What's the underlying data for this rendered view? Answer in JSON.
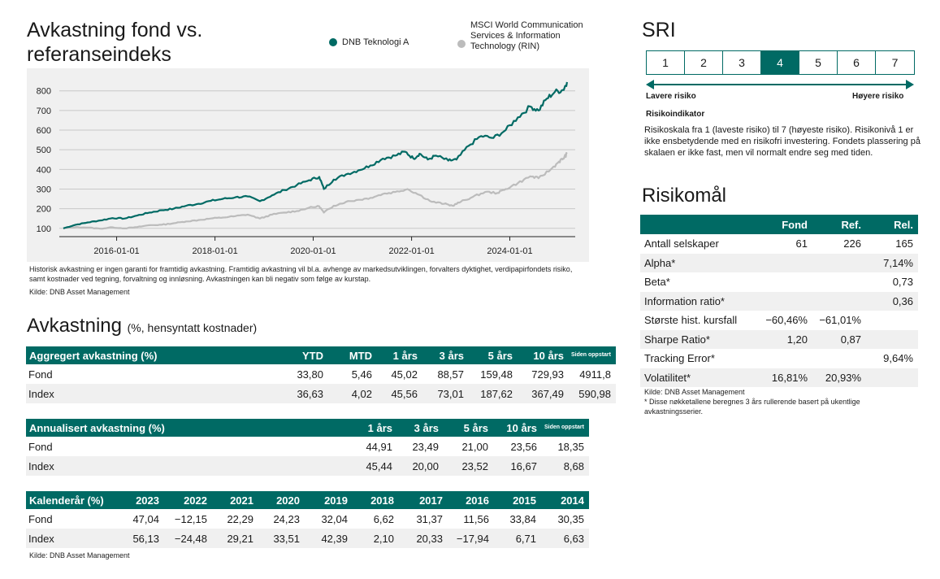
{
  "chart_section": {
    "title": "Avkastning fond vs. referanseindeks",
    "note": "Historisk avkastning er ingen garanti for framtidig avkastning. Framtidig avkastning vil bl.a. avhenge av markedsutviklingen, forvalters dyktighet, verdipapirfondets risiko, samt kostnader ved tegning, forvaltning og innløsning. Avkastningen kan bli negativ som følge av kurstap.",
    "source": "Kilde: DNB Asset Management"
  },
  "chart_data": {
    "type": "line",
    "title": "Avkastning fond vs. referanseindeks",
    "xlabel": "",
    "ylabel": "",
    "x_ticks": [
      "2016-01-01",
      "2018-01-01",
      "2020-01-01",
      "2022-01-01",
      "2024-01-01"
    ],
    "y_ticks": [
      100,
      200,
      300,
      400,
      500,
      600,
      700,
      800
    ],
    "xlim": [
      "2014-11-01",
      "2025-05-01"
    ],
    "ylim": [
      70,
      890
    ],
    "grid": true,
    "legend_position": "top",
    "series": [
      {
        "name": "DNB Teknologi A",
        "color": "#006a64",
        "points": [
          [
            "2014-12-01",
            100
          ],
          [
            "2015-03-01",
            118
          ],
          [
            "2015-06-01",
            130
          ],
          [
            "2015-09-01",
            140
          ],
          [
            "2015-12-01",
            152
          ],
          [
            "2016-03-01",
            150
          ],
          [
            "2016-06-01",
            165
          ],
          [
            "2016-09-01",
            180
          ],
          [
            "2016-12-01",
            192
          ],
          [
            "2017-03-01",
            200
          ],
          [
            "2017-06-01",
            215
          ],
          [
            "2017-09-01",
            225
          ],
          [
            "2017-12-01",
            240
          ],
          [
            "2018-03-01",
            250
          ],
          [
            "2018-06-01",
            258
          ],
          [
            "2018-09-01",
            262
          ],
          [
            "2018-12-01",
            238
          ],
          [
            "2019-03-01",
            268
          ],
          [
            "2019-06-01",
            295
          ],
          [
            "2019-09-01",
            320
          ],
          [
            "2019-12-01",
            345
          ],
          [
            "2020-02-15",
            362
          ],
          [
            "2020-03-20",
            300
          ],
          [
            "2020-06-01",
            348
          ],
          [
            "2020-09-01",
            375
          ],
          [
            "2020-12-01",
            395
          ],
          [
            "2021-03-01",
            420
          ],
          [
            "2021-06-01",
            455
          ],
          [
            "2021-09-01",
            470
          ],
          [
            "2021-11-15",
            490
          ],
          [
            "2022-01-15",
            455
          ],
          [
            "2022-03-01",
            480
          ],
          [
            "2022-05-01",
            450
          ],
          [
            "2022-07-01",
            470
          ],
          [
            "2022-10-01",
            445
          ],
          [
            "2022-12-01",
            450
          ],
          [
            "2023-03-01",
            520
          ],
          [
            "2023-06-01",
            570
          ],
          [
            "2023-09-01",
            560
          ],
          [
            "2023-12-01",
            600
          ],
          [
            "2024-03-01",
            665
          ],
          [
            "2024-06-01",
            720
          ],
          [
            "2024-08-01",
            700
          ],
          [
            "2024-10-01",
            760
          ],
          [
            "2024-12-01",
            795
          ],
          [
            "2025-02-01",
            805
          ],
          [
            "2025-03-01",
            845
          ]
        ]
      },
      {
        "name": "MSCI World Communication Services & Information Technology (RIN)",
        "color": "#bcbcbc",
        "points": [
          [
            "2014-12-01",
            100
          ],
          [
            "2015-03-01",
            106
          ],
          [
            "2015-06-01",
            104
          ],
          [
            "2015-09-01",
            98
          ],
          [
            "2015-12-01",
            105
          ],
          [
            "2016-03-01",
            100
          ],
          [
            "2016-06-01",
            106
          ],
          [
            "2016-09-01",
            116
          ],
          [
            "2016-12-01",
            118
          ],
          [
            "2017-03-01",
            126
          ],
          [
            "2017-06-01",
            135
          ],
          [
            "2017-09-01",
            142
          ],
          [
            "2017-12-01",
            150
          ],
          [
            "2018-03-01",
            155
          ],
          [
            "2018-06-01",
            162
          ],
          [
            "2018-09-01",
            170
          ],
          [
            "2018-12-01",
            150
          ],
          [
            "2019-03-01",
            170
          ],
          [
            "2019-06-01",
            180
          ],
          [
            "2019-09-01",
            188
          ],
          [
            "2019-12-01",
            205
          ],
          [
            "2020-02-15",
            212
          ],
          [
            "2020-03-20",
            180
          ],
          [
            "2020-06-01",
            215
          ],
          [
            "2020-09-01",
            235
          ],
          [
            "2020-12-01",
            245
          ],
          [
            "2021-03-01",
            255
          ],
          [
            "2021-06-01",
            275
          ],
          [
            "2021-09-01",
            285
          ],
          [
            "2021-12-01",
            300
          ],
          [
            "2022-03-01",
            270
          ],
          [
            "2022-06-01",
            235
          ],
          [
            "2022-09-01",
            225
          ],
          [
            "2022-11-01",
            215
          ],
          [
            "2023-01-01",
            235
          ],
          [
            "2023-04-01",
            260
          ],
          [
            "2023-07-01",
            285
          ],
          [
            "2023-10-01",
            280
          ],
          [
            "2023-12-01",
            300
          ],
          [
            "2024-03-01",
            330
          ],
          [
            "2024-06-01",
            365
          ],
          [
            "2024-08-01",
            355
          ],
          [
            "2024-11-01",
            400
          ],
          [
            "2025-01-01",
            440
          ],
          [
            "2025-02-01",
            455
          ],
          [
            "2025-03-01",
            480
          ]
        ]
      }
    ]
  },
  "returns": {
    "title": "Avkastning",
    "subtitle": "(%, hensyntatt kostnader)",
    "aggregated": {
      "header": [
        "Aggregert avkastning (%)",
        "YTD",
        "MTD",
        "1 års",
        "3 års",
        "5 års",
        "10 års",
        "Siden oppstart"
      ],
      "rows": [
        [
          "Fond",
          "33,80",
          "5,46",
          "45,02",
          "88,57",
          "159,48",
          "729,93",
          "4911,8"
        ],
        [
          "Index",
          "36,63",
          "4,02",
          "45,56",
          "73,01",
          "187,62",
          "367,49",
          "590,98"
        ]
      ]
    },
    "annualized": {
      "header": [
        "Annualisert avkastning (%)",
        "1 års",
        "3 års",
        "5 års",
        "10 års",
        "Siden oppstart"
      ],
      "rows": [
        [
          "Fond",
          "44,91",
          "23,49",
          "21,00",
          "23,56",
          "18,35"
        ],
        [
          "Index",
          "45,44",
          "20,00",
          "23,52",
          "16,67",
          "8,68"
        ]
      ]
    },
    "calendar": {
      "header": [
        "Kalenderår (%)",
        "2023",
        "2022",
        "2021",
        "2020",
        "2019",
        "2018",
        "2017",
        "2016",
        "2015",
        "2014"
      ],
      "rows": [
        [
          "Fond",
          "47,04",
          "−12,15",
          "22,29",
          "24,23",
          "32,04",
          "6,62",
          "31,37",
          "11,56",
          "33,84",
          "30,35"
        ],
        [
          "Index",
          "56,13",
          "−24,48",
          "29,21",
          "33,51",
          "42,39",
          "2,10",
          "20,33",
          "−17,94",
          "6,71",
          "6,63"
        ]
      ]
    },
    "source": "Kilde: DNB Asset Management"
  },
  "sri": {
    "title": "SRI",
    "levels": [
      "1",
      "2",
      "3",
      "4",
      "5",
      "6",
      "7"
    ],
    "selected": "4",
    "low_label": "Lavere risiko",
    "high_label": "Høyere risiko",
    "subtitle": "Risikoindikator",
    "description": "Risikoskala fra 1 (laveste risiko) til 7 (høyeste risiko). Risikonivå 1 er ikke ensbetydende med en risikofri investering. Fondets plassering på skalaen er ikke fast, men vil normalt endre seg med tiden."
  },
  "risk": {
    "title": "Risikomål",
    "header": [
      "",
      "Fond",
      "Ref.",
      "Rel."
    ],
    "rows": [
      [
        "Antall selskaper",
        "61",
        "226",
        "165"
      ],
      [
        "Alpha*",
        "",
        "",
        "7,14%"
      ],
      [
        "Beta*",
        "",
        "",
        "0,73"
      ],
      [
        "Information ratio*",
        "",
        "",
        "0,36"
      ],
      [
        "Største hist. kursfall",
        "−60,46%",
        "−61,01%",
        ""
      ],
      [
        "Sharpe Ratio*",
        "1,20",
        "0,87",
        ""
      ],
      [
        "Tracking Error*",
        "",
        "",
        "9,64%"
      ],
      [
        "Volatilitet*",
        "16,81%",
        "20,93%",
        ""
      ]
    ],
    "source": "Kilde: DNB Asset Management",
    "footnote": "* Disse nøkketallene beregnes 3 års rullerende basert på ukentlige avkastningsserier."
  },
  "colors": {
    "accent": "#006a64",
    "index_line": "#bcbcbc",
    "panel_bg": "#f0f0f0"
  }
}
